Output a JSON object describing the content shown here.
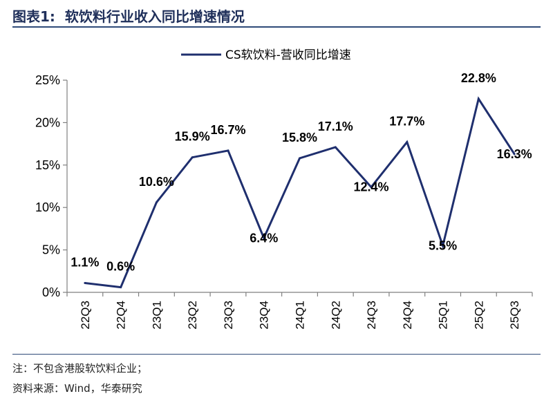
{
  "header": {
    "figure_number": "图表1:",
    "title": "软饮料行业收入同比增速情况"
  },
  "footer": {
    "note": "注：不包含港股软饮料企业；",
    "source": "资料来源：Wind，华泰研究"
  },
  "chart_data": {
    "type": "line",
    "categories": [
      "22Q3",
      "22Q4",
      "23Q1",
      "23Q2",
      "23Q3",
      "23Q4",
      "24Q1",
      "24Q2",
      "24Q3",
      "24Q4",
      "25Q1",
      "25Q2",
      "25Q3"
    ],
    "series": [
      {
        "name": "CS软饮料-营收同比增速",
        "values": [
          1.1,
          0.6,
          10.6,
          15.9,
          16.7,
          6.4,
          15.8,
          17.1,
          12.4,
          17.7,
          5.5,
          22.8,
          16.3
        ],
        "labels": [
          "1.1%",
          "0.6%",
          "10.6%",
          "15.9%",
          "16.7%",
          "6.4%",
          "15.8%",
          "17.1%",
          "12.4%",
          "17.7%",
          "5.5%",
          "22.8%",
          "16.3%"
        ],
        "color": "#1f2f6e"
      }
    ],
    "ylim": [
      0,
      25
    ],
    "yticks": [
      0,
      5,
      10,
      15,
      20,
      25
    ],
    "ytick_labels": [
      "0%",
      "5%",
      "10%",
      "15%",
      "20%",
      "25%"
    ],
    "xlabel": "",
    "ylabel": "",
    "legend_position": "top-center",
    "grid": false,
    "axis_color": "#7f7f7f"
  }
}
